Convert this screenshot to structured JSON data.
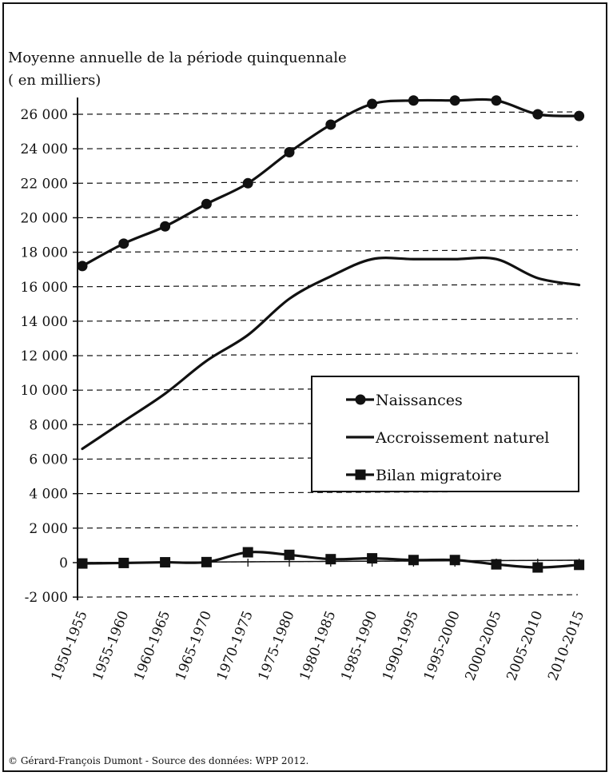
{
  "chart_data": {
    "type": "line",
    "ylabel_line1": "Moyenne annuelle de la période quinquennale",
    "ylabel_line2": "( en milliers)",
    "categories": [
      "1950-1955",
      "1955-1960",
      "1960-1965",
      "1965-1970",
      "1970-1975",
      "1975-1980",
      "1980-1985",
      "1985-1990",
      "1990-1995",
      "1995-2000",
      "2000-2005",
      "2005-2010",
      "2010-2015"
    ],
    "ylim": [
      -2000,
      26000
    ],
    "yticks": [
      -2000,
      0,
      2000,
      4000,
      6000,
      8000,
      10000,
      12000,
      14000,
      16000,
      18000,
      20000,
      22000,
      24000,
      26000
    ],
    "ytick_labels": [
      "-2 000",
      "0",
      "2 000",
      "4 000",
      "6 000",
      "8 000",
      "10 000",
      "12 000",
      "14 000",
      "16 000",
      "18 000",
      "20 000",
      "22 000",
      "24 000",
      "26 000"
    ],
    "grid": "dashed horizontal",
    "legend_position": "center-right",
    "series": [
      {
        "name": "Naissances",
        "marker": "circle",
        "values": [
          17200,
          18500,
          19500,
          20800,
          22000,
          23800,
          25400,
          26600,
          26800,
          26800,
          26800,
          26000,
          25900
        ]
      },
      {
        "name": "Accroissement naturel",
        "marker": "none",
        "values": [
          6600,
          8200,
          9800,
          11700,
          13200,
          15300,
          16600,
          17600,
          17600,
          17600,
          17600,
          16500,
          16100
        ]
      },
      {
        "name": "Bilan migratoire",
        "marker": "square",
        "values": [
          -50,
          -20,
          20,
          30,
          600,
          450,
          200,
          250,
          150,
          150,
          -100,
          -280,
          -130
        ]
      }
    ]
  },
  "credit": "© Gérard-François Dumont - Source des données: WPP 2012.",
  "colors": {
    "line": "#111111",
    "grid": "#111111",
    "background": "#ffffff"
  }
}
